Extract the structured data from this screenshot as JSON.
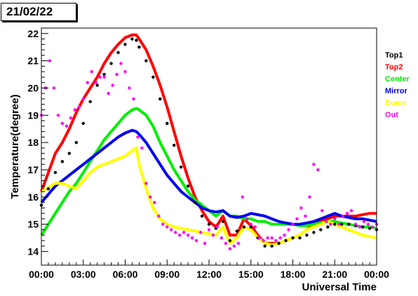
{
  "date_label": "21/02/22",
  "chart_data": {
    "type": "line",
    "title": "",
    "xlabel": "Universal Time",
    "ylabel": "Temperature(degree)",
    "xlim": [
      0,
      24
    ],
    "ylim": [
      13.5,
      22.2
    ],
    "x_ticks": [
      {
        "value": 0,
        "label": "00:00"
      },
      {
        "value": 3,
        "label": "03:00"
      },
      {
        "value": 6,
        "label": "06:00"
      },
      {
        "value": 9,
        "label": "09:00"
      },
      {
        "value": 12,
        "label": "12:00"
      },
      {
        "value": 15,
        "label": "15:00"
      },
      {
        "value": 18,
        "label": "18:00"
      },
      {
        "value": 21,
        "label": "21:00"
      },
      {
        "value": 24,
        "label": "00:00"
      }
    ],
    "y_ticks": [
      14,
      15,
      16,
      17,
      18,
      19,
      20,
      21,
      22
    ],
    "grid": false,
    "legend_position": "right",
    "series": [
      {
        "name": "Top1",
        "color": "#000000",
        "style": "markers",
        "x": [
          0,
          0.5,
          1,
          1.5,
          2,
          2.5,
          3,
          3.5,
          4,
          4.5,
          5,
          5.5,
          6,
          6.5,
          6.8,
          7,
          7.5,
          8,
          8.5,
          9,
          9.5,
          10,
          10.5,
          11,
          11.5,
          12,
          12.5,
          13,
          13.5,
          14,
          14.5,
          15,
          15.5,
          16,
          16.5,
          17,
          17.5,
          18,
          18.5,
          19,
          19.5,
          20,
          20.5,
          21,
          21.5,
          22,
          22.5,
          23,
          23.5,
          24
        ],
        "y": [
          15.7,
          16.3,
          16.9,
          17.3,
          17.6,
          18.0,
          18.7,
          19.5,
          20.1,
          20.5,
          20.9,
          21.3,
          21.6,
          21.8,
          21.75,
          21.5,
          21.0,
          20.4,
          19.6,
          18.7,
          17.9,
          17.1,
          16.4,
          15.8,
          15.3,
          15.0,
          14.85,
          15.1,
          14.4,
          14.75,
          14.9,
          14.9,
          14.5,
          14.2,
          14.2,
          14.3,
          14.4,
          14.5,
          14.5,
          14.6,
          14.7,
          14.8,
          14.9,
          15.0,
          15.0,
          15.0,
          14.95,
          14.9,
          14.85,
          14.8
        ]
      },
      {
        "name": "Top2",
        "color": "#ff0000",
        "style": "line",
        "x": [
          0,
          0.5,
          1,
          1.5,
          2,
          2.5,
          3,
          3.5,
          4,
          4.5,
          5,
          5.5,
          6,
          6.5,
          6.8,
          7,
          7.5,
          8,
          8.5,
          9,
          9.5,
          10,
          10.5,
          11,
          11.5,
          12,
          12.5,
          13,
          13.5,
          14,
          14.5,
          15,
          15.5,
          16,
          16.5,
          17,
          17.5,
          18,
          18.5,
          19,
          19.5,
          20,
          20.5,
          21,
          21.5,
          22,
          22.5,
          23,
          23.5,
          24
        ],
        "y": [
          16.2,
          16.9,
          17.6,
          18.0,
          18.5,
          19.1,
          19.6,
          20.0,
          20.4,
          20.9,
          21.3,
          21.6,
          21.85,
          21.95,
          21.95,
          21.8,
          21.4,
          20.8,
          20.1,
          19.3,
          18.4,
          17.5,
          16.7,
          16.0,
          15.5,
          15.1,
          14.9,
          15.3,
          14.6,
          14.6,
          15.2,
          14.95,
          14.6,
          14.3,
          14.3,
          14.3,
          14.4,
          14.5,
          14.6,
          14.8,
          15.0,
          15.1,
          15.2,
          15.3,
          15.3,
          15.3,
          15.3,
          15.35,
          15.4,
          15.4
        ]
      },
      {
        "name": "Center",
        "color": "#00ee00",
        "style": "line",
        "x": [
          0,
          0.5,
          1,
          1.5,
          2,
          2.5,
          3,
          3.5,
          4,
          4.5,
          5,
          5.5,
          6,
          6.5,
          6.8,
          7,
          7.5,
          8,
          8.5,
          9,
          9.5,
          10,
          10.5,
          11,
          11.5,
          12,
          12.5,
          13,
          13.5,
          14,
          14.5,
          15,
          15.5,
          16,
          16.5,
          17,
          17.5,
          18,
          18.5,
          19,
          19.5,
          20,
          20.5,
          21,
          21.5,
          22,
          22.5,
          23,
          23.5,
          24
        ],
        "y": [
          14.6,
          15.0,
          15.4,
          15.8,
          16.2,
          16.5,
          16.9,
          17.3,
          17.7,
          18.1,
          18.4,
          18.7,
          19.0,
          19.2,
          19.25,
          19.2,
          19.0,
          18.6,
          18.0,
          17.5,
          17.0,
          16.6,
          16.2,
          15.9,
          15.7,
          15.5,
          15.3,
          15.5,
          15.3,
          15.3,
          15.2,
          15.2,
          15.1,
          15.1,
          15.0,
          15.0,
          15.0,
          15.0,
          14.95,
          14.95,
          15.0,
          15.05,
          15.1,
          15.1,
          15.05,
          15.0,
          14.95,
          14.9,
          14.9,
          14.85
        ]
      },
      {
        "name": "Mirror",
        "color": "#0000ee",
        "style": "line",
        "x": [
          0,
          0.5,
          1,
          1.5,
          2,
          2.5,
          3,
          3.5,
          4,
          4.5,
          5,
          5.5,
          6,
          6.5,
          6.8,
          7,
          7.5,
          8,
          8.5,
          9,
          9.5,
          10,
          10.5,
          11,
          11.5,
          12,
          12.5,
          13,
          13.5,
          14,
          14.5,
          15,
          15.5,
          16,
          16.5,
          17,
          17.5,
          18,
          18.5,
          19,
          19.5,
          20,
          20.5,
          21,
          21.5,
          22,
          22.5,
          23,
          23.5,
          24
        ],
        "y": [
          15.8,
          16.1,
          16.4,
          16.6,
          16.8,
          17.0,
          17.2,
          17.4,
          17.6,
          17.8,
          18.0,
          18.2,
          18.35,
          18.45,
          18.4,
          18.3,
          18.0,
          17.6,
          17.2,
          16.8,
          16.5,
          16.2,
          16.0,
          15.8,
          15.6,
          15.5,
          15.45,
          15.5,
          15.3,
          15.25,
          15.3,
          15.4,
          15.35,
          15.3,
          15.2,
          15.1,
          15.05,
          15.0,
          15.0,
          15.05,
          15.1,
          15.2,
          15.3,
          15.4,
          15.3,
          15.25,
          15.2,
          15.2,
          15.15,
          15.1
        ]
      },
      {
        "name": "Dome",
        "color": "#ffff00",
        "style": "line",
        "x": [
          0,
          0.5,
          1,
          1.5,
          2,
          2.5,
          3,
          3.5,
          4,
          4.5,
          5,
          5.5,
          6,
          6.5,
          6.8,
          7,
          7.5,
          8,
          8.5,
          9,
          9.5,
          10,
          10.5,
          11,
          11.5,
          12,
          12.5,
          13,
          13.5,
          14,
          14.5,
          15,
          15.5,
          16,
          16.5,
          17,
          17.5,
          18,
          18.5,
          19,
          19.5,
          20,
          20.5,
          21,
          21.5,
          22,
          22.5,
          23,
          23.5,
          24
        ],
        "y": [
          16.2,
          16.35,
          16.5,
          16.5,
          16.4,
          16.3,
          16.6,
          16.9,
          17.1,
          17.2,
          17.3,
          17.4,
          17.5,
          17.7,
          17.8,
          17.2,
          16.3,
          15.6,
          15.2,
          15.0,
          14.9,
          14.85,
          14.8,
          14.75,
          14.7,
          14.65,
          14.6,
          14.9,
          14.3,
          14.5,
          14.9,
          14.8,
          14.5,
          14.3,
          14.25,
          14.3,
          14.4,
          14.5,
          14.6,
          14.8,
          14.9,
          15.0,
          15.1,
          15.0,
          14.9,
          14.8,
          14.7,
          14.6,
          14.55,
          14.5
        ]
      },
      {
        "name": "Out",
        "color": "#ff00ff",
        "style": "markers",
        "x": [
          0,
          0.3,
          0.6,
          0.9,
          1.2,
          1.5,
          1.8,
          2.1,
          2.4,
          2.7,
          3,
          3.3,
          3.6,
          3.9,
          4.2,
          4.5,
          4.8,
          5.1,
          5.4,
          5.7,
          6,
          6.3,
          6.6,
          6.9,
          7.2,
          7.5,
          7.8,
          8.1,
          8.4,
          8.7,
          9,
          9.3,
          9.6,
          9.9,
          10.2,
          10.5,
          10.8,
          11.1,
          11.4,
          11.7,
          12,
          12.3,
          12.6,
          12.9,
          13.2,
          13.5,
          13.8,
          14.1,
          14.4,
          14.7,
          15,
          15.3,
          15.6,
          15.9,
          16.2,
          16.5,
          16.8,
          17.1,
          17.4,
          17.7,
          18,
          18.3,
          18.6,
          18.9,
          19.2,
          19.5,
          19.8,
          20.1,
          20.4,
          20.7,
          21,
          21.3,
          21.6,
          21.9,
          22.2,
          22.5,
          22.8,
          23.1,
          23.4,
          23.7,
          24
        ],
        "y": [
          19.0,
          20.0,
          21.0,
          20.0,
          19.0,
          18.7,
          18.6,
          18.9,
          19.2,
          19.3,
          19.6,
          20.2,
          20.6,
          20.2,
          20.4,
          20.4,
          19.8,
          20.1,
          20.5,
          20.9,
          20.6,
          20.0,
          19.6,
          18.2,
          17.8,
          16.5,
          16.0,
          15.8,
          15.3,
          15.0,
          14.9,
          14.8,
          14.7,
          14.6,
          14.7,
          14.6,
          14.5,
          14.4,
          14.7,
          14.3,
          14.8,
          14.6,
          14.9,
          14.5,
          14.3,
          14.1,
          14.2,
          14.3,
          16.0,
          15.2,
          15.0,
          14.9,
          14.5,
          14.4,
          14.5,
          14.5,
          14.4,
          14.5,
          14.6,
          14.8,
          15.0,
          15.2,
          15.6,
          15.3,
          16.0,
          17.2,
          17.0,
          15.5,
          15.1,
          15.0,
          15.2,
          15.0,
          15.3,
          15.4,
          15.5,
          15.0,
          14.9,
          15.1,
          15.0,
          14.9,
          15.0
        ]
      }
    ]
  }
}
